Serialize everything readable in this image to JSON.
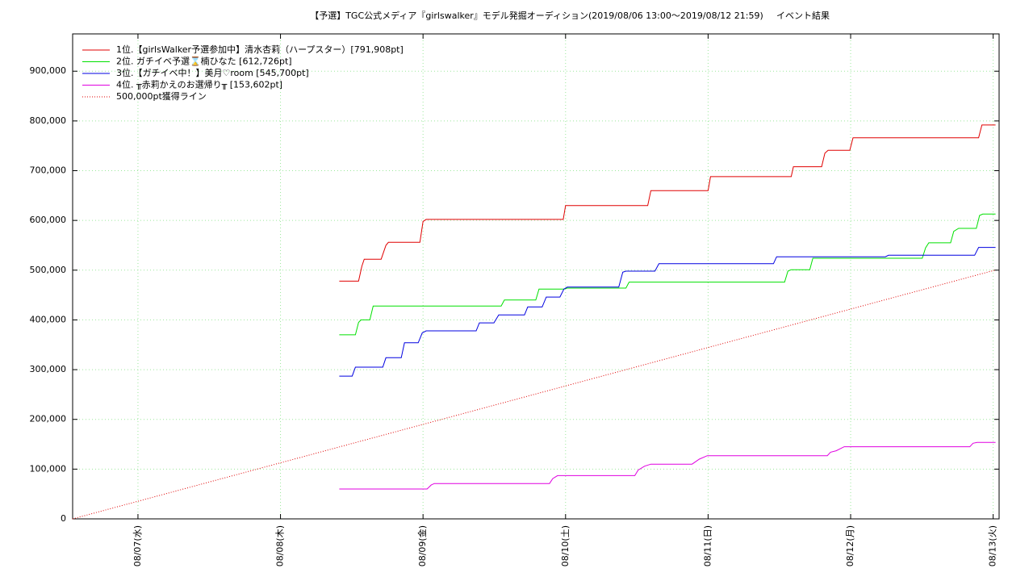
{
  "chart_data": {
    "type": "line",
    "title": "【予選】TGC公式メディア『girlswalker』モデル発掘オーディション(2019/08/06 13:00〜2019/08/12 21:59)",
    "subtitle": "イベント結果",
    "xlim": [
      "2019-08-06 13:00",
      "2019-08-13 01:00"
    ],
    "xticks": [
      {
        "value": "2019-08-07 00:00",
        "label": "08/07(水)"
      },
      {
        "value": "2019-08-08 00:00",
        "label": "08/08(木)"
      },
      {
        "value": "2019-08-09 00:00",
        "label": "08/09(金)"
      },
      {
        "value": "2019-08-10 00:00",
        "label": "08/10(土)"
      },
      {
        "value": "2019-08-11 00:00",
        "label": "08/11(日)"
      },
      {
        "value": "2019-08-12 00:00",
        "label": "08/12(月)"
      },
      {
        "value": "2019-08-13 00:00",
        "label": "08/13(火)"
      }
    ],
    "ylim": [
      0,
      975000
    ],
    "yticks": [
      0,
      {
        "value": 100000,
        "label": "100,000"
      },
      {
        "value": 200000,
        "label": "200,000"
      },
      {
        "value": 300000,
        "label": "300,000"
      },
      {
        "value": 400000,
        "label": "400,000"
      },
      {
        "value": 500000,
        "label": "500,000"
      },
      {
        "value": 600000,
        "label": "600,000"
      },
      {
        "value": 700000,
        "label": "700,000"
      },
      {
        "value": 800000,
        "label": "800,000"
      },
      {
        "value": 900000,
        "label": "900,000"
      }
    ],
    "grid": true,
    "legend": "top-left",
    "series": [
      {
        "name": "1位.【girlsWalker予選参加中】清水杏莉（ハープスター）[791,908pt]",
        "color": "#e00000",
        "x": [
          "2019-08-08 09:54",
          "2019-08-08 13:09",
          "2019-08-08 13:42",
          "2019-08-08 14:06",
          "2019-08-08 16:57",
          "2019-08-08 17:45",
          "2019-08-08 18:10",
          "2019-08-08 23:28",
          "2019-08-09 00:00",
          "2019-08-09 00:32",
          "2019-08-09 23:36",
          "2019-08-10 00:00",
          "2019-08-10 13:50",
          "2019-08-10 14:22",
          "2019-08-11 00:00",
          "2019-08-11 00:24",
          "2019-08-11 14:00",
          "2019-08-11 14:22",
          "2019-08-11 19:07",
          "2019-08-11 19:40",
          "2019-08-11 20:12",
          "2019-08-11 23:52",
          "2019-08-12 00:24",
          "2019-08-12 21:33",
          "2019-08-12 22:06",
          "2019-08-13 00:24"
        ],
        "values": [
          478000,
          478000,
          508000,
          522000,
          522000,
          550000,
          556000,
          556000,
          598000,
          602000,
          602000,
          630000,
          630000,
          660000,
          660000,
          688000,
          688000,
          708000,
          708000,
          735000,
          741000,
          741000,
          766000,
          766000,
          791908,
          791908
        ]
      },
      {
        "name": "2位. ガチイベ予選⌛楠ひなた [612,726pt]",
        "color": "#00e000",
        "x": [
          "2019-08-08 09:54",
          "2019-08-08 12:37",
          "2019-08-08 13:09",
          "2019-08-08 13:34",
          "2019-08-08 15:03",
          "2019-08-08 15:36",
          "2019-08-09 13:09",
          "2019-08-09 13:42",
          "2019-08-09 18:59",
          "2019-08-09 19:32",
          "2019-08-09 23:44",
          "2019-08-10 00:17",
          "2019-08-10 10:10",
          "2019-08-10 10:42",
          "2019-08-11 12:53",
          "2019-08-11 13:26",
          "2019-08-11 14:00",
          "2019-08-11 17:07",
          "2019-08-11 17:38",
          "2019-08-12 12:04",
          "2019-08-12 12:37",
          "2019-08-12 13:10",
          "2019-08-12 16:50",
          "2019-08-12 17:22",
          "2019-08-12 18:11",
          "2019-08-12 21:10",
          "2019-08-12 21:43",
          "2019-08-12 22:15",
          "2019-08-13 00:24"
        ],
        "values": [
          370000,
          370000,
          395000,
          400000,
          400000,
          428000,
          428000,
          440000,
          440000,
          462000,
          462000,
          464000,
          464000,
          476000,
          476000,
          498000,
          501000,
          501000,
          524000,
          524000,
          545000,
          555000,
          555000,
          578000,
          584000,
          584000,
          610000,
          612726,
          612726
        ]
      },
      {
        "name": "3位.【ガチイベ中！】美月♡room [545,700pt]",
        "color": "#0000e0",
        "x": [
          "2019-08-08 09:54",
          "2019-08-08 12:04",
          "2019-08-08 12:37",
          "2019-08-08 17:13",
          "2019-08-08 17:45",
          "2019-08-08 20:20",
          "2019-08-08 20:53",
          "2019-08-08 23:11",
          "2019-08-08 23:52",
          "2019-08-09 00:32",
          "2019-08-09 08:57",
          "2019-08-09 09:29",
          "2019-08-09 11:56",
          "2019-08-09 12:45",
          "2019-08-09 17:05",
          "2019-08-09 17:38",
          "2019-08-09 20:04",
          "2019-08-09 20:45",
          "2019-08-09 23:03",
          "2019-08-09 23:44",
          "2019-08-10 00:17",
          "2019-08-10 08:57",
          "2019-08-10 09:38",
          "2019-08-10 10:10",
          "2019-08-10 15:03",
          "2019-08-10 15:43",
          "2019-08-11 11:00",
          "2019-08-11 11:32",
          "2019-08-12 05:51",
          "2019-08-12 06:23",
          "2019-08-12 20:53",
          "2019-08-12 21:33",
          "2019-08-13 00:24"
        ],
        "values": [
          287000,
          287000,
          305000,
          305000,
          324000,
          324000,
          354000,
          354000,
          374000,
          378000,
          378000,
          394000,
          394000,
          410000,
          410000,
          426000,
          426000,
          446000,
          446000,
          462000,
          466000,
          466000,
          496000,
          498000,
          498000,
          513000,
          513000,
          527000,
          527000,
          530000,
          530000,
          545700,
          545700
        ]
      },
      {
        "name": "4位. ╥赤莉かえのお選帰り╥ [153,602pt]",
        "color": "#e000e0",
        "x": [
          "2019-08-08 09:54",
          "2019-08-09 00:41",
          "2019-08-09 01:22",
          "2019-08-09 01:54",
          "2019-08-09 21:18",
          "2019-08-09 21:50",
          "2019-08-09 22:39",
          "2019-08-10 11:40",
          "2019-08-10 12:13",
          "2019-08-10 13:18",
          "2019-08-10 14:22",
          "2019-08-10 21:18",
          "2019-08-10 22:31",
          "2019-08-10 23:52",
          "2019-08-11 20:04",
          "2019-08-11 20:37",
          "2019-08-11 21:34",
          "2019-08-11 22:55",
          "2019-08-12 20:04",
          "2019-08-12 20:37",
          "2019-08-12 21:18",
          "2019-08-13 00:24"
        ],
        "values": [
          60000,
          60000,
          68000,
          71000,
          71000,
          81000,
          87000,
          87000,
          98000,
          106000,
          110000,
          110000,
          120000,
          127000,
          127000,
          134000,
          137000,
          145000,
          145000,
          152000,
          153602,
          153602
        ]
      },
      {
        "name": "500,000pt獲得ライン",
        "color": "#e00000",
        "dash": true,
        "x": [
          "2019-08-06 13:00",
          "2019-08-13 00:18"
        ],
        "values": [
          0,
          500000
        ]
      }
    ]
  }
}
